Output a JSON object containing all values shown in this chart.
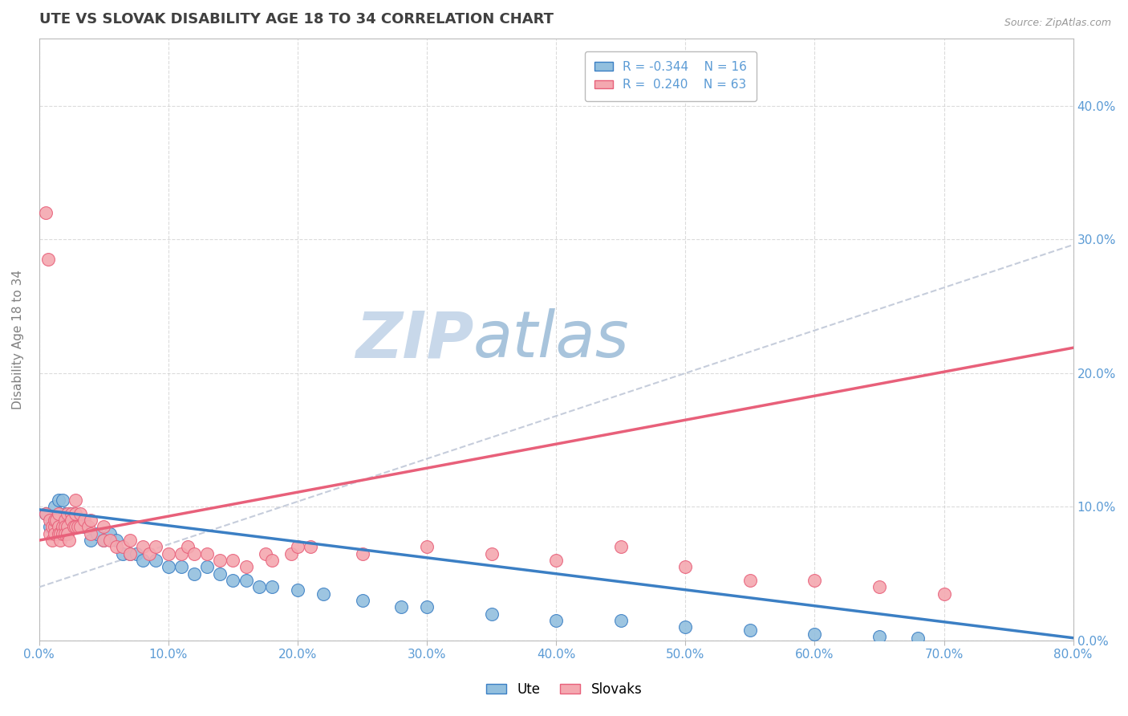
{
  "title": "UTE VS SLOVAK DISABILITY AGE 18 TO 34 CORRELATION CHART",
  "source_text": "Source: ZipAtlas.com",
  "xlabel_ticks": [
    "0.0%",
    "10.0%",
    "20.0%",
    "30.0%",
    "40.0%",
    "50.0%",
    "60.0%",
    "70.0%",
    "80.0%"
  ],
  "ylabel_label": "Disability Age 18 to 34",
  "xlim": [
    0.0,
    0.8
  ],
  "ylim": [
    0.0,
    0.45
  ],
  "ute_color": "#92BFDE",
  "slovak_color": "#F4A8B0",
  "ute_line_color": "#3B7FC4",
  "slovak_line_color": "#E8607A",
  "trend_line_color": "#C0C8D8",
  "background_color": "#FFFFFF",
  "grid_color": "#CCCCCC",
  "title_color": "#404040",
  "axis_label_color": "#5B9BD5",
  "ute_scatter": [
    [
      0.005,
      0.095
    ],
    [
      0.008,
      0.085
    ],
    [
      0.01,
      0.09
    ],
    [
      0.012,
      0.1
    ],
    [
      0.015,
      0.105
    ],
    [
      0.018,
      0.105
    ],
    [
      0.02,
      0.095
    ],
    [
      0.022,
      0.085
    ],
    [
      0.025,
      0.095
    ],
    [
      0.028,
      0.09
    ],
    [
      0.03,
      0.085
    ],
    [
      0.035,
      0.085
    ],
    [
      0.04,
      0.075
    ],
    [
      0.045,
      0.08
    ],
    [
      0.05,
      0.075
    ],
    [
      0.055,
      0.08
    ],
    [
      0.06,
      0.075
    ],
    [
      0.065,
      0.065
    ],
    [
      0.07,
      0.065
    ],
    [
      0.075,
      0.065
    ],
    [
      0.08,
      0.06
    ],
    [
      0.09,
      0.06
    ],
    [
      0.1,
      0.055
    ],
    [
      0.11,
      0.055
    ],
    [
      0.12,
      0.05
    ],
    [
      0.13,
      0.055
    ],
    [
      0.14,
      0.05
    ],
    [
      0.15,
      0.045
    ],
    [
      0.16,
      0.045
    ],
    [
      0.17,
      0.04
    ],
    [
      0.18,
      0.04
    ],
    [
      0.2,
      0.038
    ],
    [
      0.22,
      0.035
    ],
    [
      0.25,
      0.03
    ],
    [
      0.28,
      0.025
    ],
    [
      0.3,
      0.025
    ],
    [
      0.35,
      0.02
    ],
    [
      0.4,
      0.015
    ],
    [
      0.45,
      0.015
    ],
    [
      0.5,
      0.01
    ],
    [
      0.55,
      0.008
    ],
    [
      0.6,
      0.005
    ],
    [
      0.65,
      0.003
    ],
    [
      0.68,
      0.002
    ]
  ],
  "slovak_scatter": [
    [
      0.005,
      0.32
    ],
    [
      0.007,
      0.285
    ],
    [
      0.005,
      0.095
    ],
    [
      0.008,
      0.08
    ],
    [
      0.008,
      0.09
    ],
    [
      0.01,
      0.085
    ],
    [
      0.01,
      0.075
    ],
    [
      0.012,
      0.085
    ],
    [
      0.012,
      0.08
    ],
    [
      0.012,
      0.09
    ],
    [
      0.013,
      0.09
    ],
    [
      0.015,
      0.095
    ],
    [
      0.015,
      0.085
    ],
    [
      0.015,
      0.08
    ],
    [
      0.016,
      0.08
    ],
    [
      0.016,
      0.075
    ],
    [
      0.018,
      0.085
    ],
    [
      0.018,
      0.08
    ],
    [
      0.02,
      0.09
    ],
    [
      0.02,
      0.085
    ],
    [
      0.02,
      0.08
    ],
    [
      0.022,
      0.095
    ],
    [
      0.022,
      0.085
    ],
    [
      0.022,
      0.08
    ],
    [
      0.023,
      0.075
    ],
    [
      0.025,
      0.095
    ],
    [
      0.025,
      0.09
    ],
    [
      0.027,
      0.085
    ],
    [
      0.028,
      0.105
    ],
    [
      0.028,
      0.095
    ],
    [
      0.028,
      0.085
    ],
    [
      0.03,
      0.085
    ],
    [
      0.032,
      0.095
    ],
    [
      0.032,
      0.085
    ],
    [
      0.035,
      0.09
    ],
    [
      0.038,
      0.085
    ],
    [
      0.04,
      0.09
    ],
    [
      0.04,
      0.08
    ],
    [
      0.05,
      0.075
    ],
    [
      0.05,
      0.085
    ],
    [
      0.055,
      0.075
    ],
    [
      0.06,
      0.07
    ],
    [
      0.065,
      0.07
    ],
    [
      0.07,
      0.075
    ],
    [
      0.07,
      0.065
    ],
    [
      0.08,
      0.07
    ],
    [
      0.085,
      0.065
    ],
    [
      0.09,
      0.07
    ],
    [
      0.1,
      0.065
    ],
    [
      0.11,
      0.065
    ],
    [
      0.115,
      0.07
    ],
    [
      0.12,
      0.065
    ],
    [
      0.13,
      0.065
    ],
    [
      0.14,
      0.06
    ],
    [
      0.15,
      0.06
    ],
    [
      0.16,
      0.055
    ],
    [
      0.175,
      0.065
    ],
    [
      0.18,
      0.06
    ],
    [
      0.195,
      0.065
    ],
    [
      0.2,
      0.07
    ],
    [
      0.21,
      0.07
    ],
    [
      0.25,
      0.065
    ],
    [
      0.3,
      0.07
    ],
    [
      0.35,
      0.065
    ],
    [
      0.4,
      0.06
    ],
    [
      0.45,
      0.07
    ],
    [
      0.5,
      0.055
    ],
    [
      0.55,
      0.045
    ],
    [
      0.6,
      0.045
    ],
    [
      0.65,
      0.04
    ],
    [
      0.7,
      0.035
    ]
  ]
}
